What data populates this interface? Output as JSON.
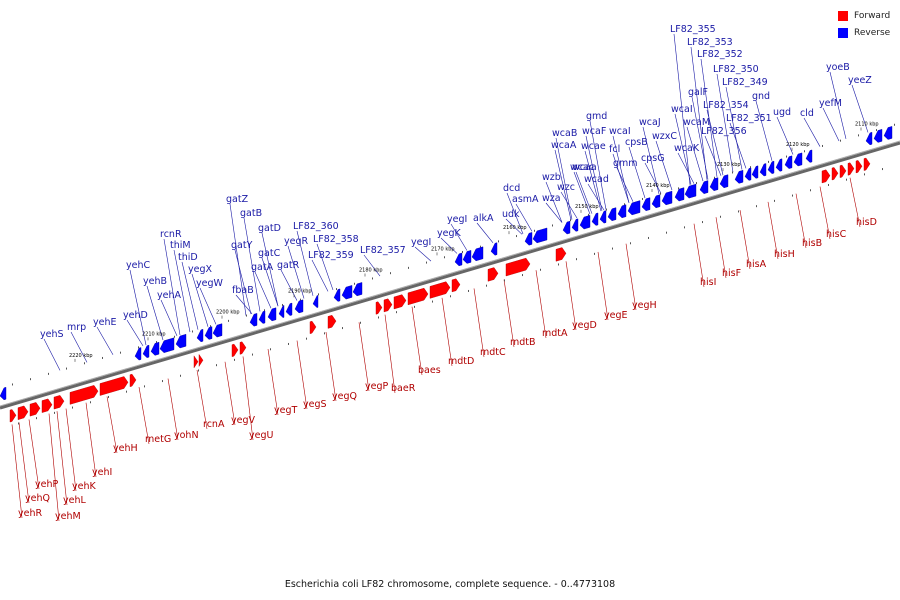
{
  "title": "Escherichia coli LF82 chromosome, complete sequence. - 0..4773108",
  "legend": [
    {
      "name": "Forward",
      "color": "#ff0000"
    },
    {
      "name": "Reverse",
      "color": "#0000ff"
    }
  ],
  "colors": {
    "forward": "#ff0000",
    "forward_dark": "#b00000",
    "reverse": "#0000ff",
    "reverse_dark": "#000099",
    "backbone": "#666666",
    "forward_label": "#b00000",
    "reverse_label": "#1a1aa6"
  },
  "scale_unit": "kbp",
  "ticks": [
    "2220 kbp",
    "2210 kbp",
    "2200 kbp",
    "2190 kbp",
    "2180 kbp",
    "2170 kbp",
    "2160 kbp",
    "2150 kbp",
    "2140 kbp",
    "2130 kbp",
    "2120 kbp",
    "2110 kbp"
  ],
  "reverse_genes": [
    "yehS",
    "mrp",
    "yehE",
    "yehD",
    "yehC",
    "yehB",
    "yehA",
    "rcnR",
    "thiM",
    "thiD",
    "yegX",
    "yegW",
    "fbaB",
    "gatY",
    "gatZ",
    "gatB",
    "gatA",
    "gatC",
    "gatD",
    "gatR",
    "yegR",
    "LF82_359",
    "LF82_358",
    "LF82_360",
    "LF82_357",
    "yegI",
    "yegK",
    "yegI",
    "alkA",
    "udk",
    "dcd",
    "asmA",
    "wza",
    "wzb",
    "wzc",
    "wcaa",
    "wcac",
    "wcad",
    "wcaB",
    "wcaA",
    "wcaF",
    "wcae",
    "gmd",
    "fcl",
    "wcaI",
    "gmm",
    "cpsB",
    "wzxC",
    "cpsG",
    "wcaJ",
    "wcaM",
    "wcaK",
    "wcaI",
    "galF",
    "LF82_354",
    "LF82_356",
    "LF82_355",
    "LF82_353",
    "LF82_352",
    "LF82_350",
    "LF82_349",
    "LF82_351",
    "gnd",
    "ugd",
    "cld",
    "yefM",
    "yoeB",
    "yeeZ"
  ],
  "forward_genes": [
    "yehR",
    "yehQ",
    "yehP",
    "yehM",
    "yehL",
    "yehK",
    "yehI",
    "yehH",
    "metG",
    "yohN",
    "rcnA",
    "yegV",
    "yegU",
    "yegT",
    "yegS",
    "yegQ",
    "yegP",
    "baeR",
    "baes",
    "mdtD",
    "mdtC",
    "mdtB",
    "mdtA",
    "yegD",
    "yegE",
    "yegH",
    "hisI",
    "hisF",
    "hisA",
    "hisH",
    "hisB",
    "hisC",
    "hisD"
  ]
}
